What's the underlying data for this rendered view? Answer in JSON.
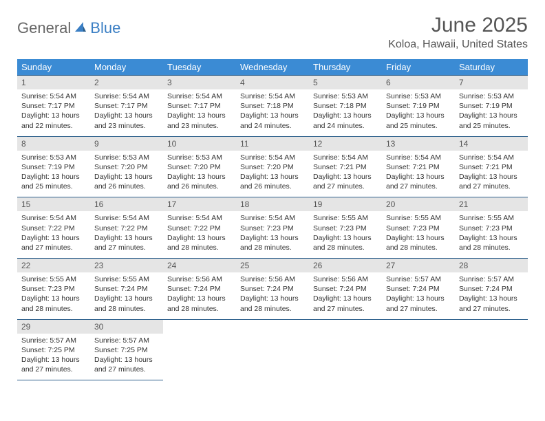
{
  "logo": {
    "general": "General",
    "blue": "Blue"
  },
  "title": "June 2025",
  "location": "Koloa, Hawaii, United States",
  "colors": {
    "header_bg": "#3b8bd4",
    "header_text": "#ffffff",
    "daynum_bg": "#e5e5e5",
    "rule": "#2a5d8a",
    "title_text": "#555555",
    "body_text": "#333333",
    "logo_blue": "#3b7fc4"
  },
  "day_labels": [
    "Sunday",
    "Monday",
    "Tuesday",
    "Wednesday",
    "Thursday",
    "Friday",
    "Saturday"
  ],
  "weeks": [
    [
      {
        "n": "1",
        "sr": "5:54 AM",
        "ss": "7:17 PM",
        "dl": "13 hours and 22 minutes."
      },
      {
        "n": "2",
        "sr": "5:54 AM",
        "ss": "7:17 PM",
        "dl": "13 hours and 23 minutes."
      },
      {
        "n": "3",
        "sr": "5:54 AM",
        "ss": "7:17 PM",
        "dl": "13 hours and 23 minutes."
      },
      {
        "n": "4",
        "sr": "5:54 AM",
        "ss": "7:18 PM",
        "dl": "13 hours and 24 minutes."
      },
      {
        "n": "5",
        "sr": "5:53 AM",
        "ss": "7:18 PM",
        "dl": "13 hours and 24 minutes."
      },
      {
        "n": "6",
        "sr": "5:53 AM",
        "ss": "7:19 PM",
        "dl": "13 hours and 25 minutes."
      },
      {
        "n": "7",
        "sr": "5:53 AM",
        "ss": "7:19 PM",
        "dl": "13 hours and 25 minutes."
      }
    ],
    [
      {
        "n": "8",
        "sr": "5:53 AM",
        "ss": "7:19 PM",
        "dl": "13 hours and 25 minutes."
      },
      {
        "n": "9",
        "sr": "5:53 AM",
        "ss": "7:20 PM",
        "dl": "13 hours and 26 minutes."
      },
      {
        "n": "10",
        "sr": "5:53 AM",
        "ss": "7:20 PM",
        "dl": "13 hours and 26 minutes."
      },
      {
        "n": "11",
        "sr": "5:54 AM",
        "ss": "7:20 PM",
        "dl": "13 hours and 26 minutes."
      },
      {
        "n": "12",
        "sr": "5:54 AM",
        "ss": "7:21 PM",
        "dl": "13 hours and 27 minutes."
      },
      {
        "n": "13",
        "sr": "5:54 AM",
        "ss": "7:21 PM",
        "dl": "13 hours and 27 minutes."
      },
      {
        "n": "14",
        "sr": "5:54 AM",
        "ss": "7:21 PM",
        "dl": "13 hours and 27 minutes."
      }
    ],
    [
      {
        "n": "15",
        "sr": "5:54 AM",
        "ss": "7:22 PM",
        "dl": "13 hours and 27 minutes."
      },
      {
        "n": "16",
        "sr": "5:54 AM",
        "ss": "7:22 PM",
        "dl": "13 hours and 27 minutes."
      },
      {
        "n": "17",
        "sr": "5:54 AM",
        "ss": "7:22 PM",
        "dl": "13 hours and 28 minutes."
      },
      {
        "n": "18",
        "sr": "5:54 AM",
        "ss": "7:23 PM",
        "dl": "13 hours and 28 minutes."
      },
      {
        "n": "19",
        "sr": "5:55 AM",
        "ss": "7:23 PM",
        "dl": "13 hours and 28 minutes."
      },
      {
        "n": "20",
        "sr": "5:55 AM",
        "ss": "7:23 PM",
        "dl": "13 hours and 28 minutes."
      },
      {
        "n": "21",
        "sr": "5:55 AM",
        "ss": "7:23 PM",
        "dl": "13 hours and 28 minutes."
      }
    ],
    [
      {
        "n": "22",
        "sr": "5:55 AM",
        "ss": "7:23 PM",
        "dl": "13 hours and 28 minutes."
      },
      {
        "n": "23",
        "sr": "5:55 AM",
        "ss": "7:24 PM",
        "dl": "13 hours and 28 minutes."
      },
      {
        "n": "24",
        "sr": "5:56 AM",
        "ss": "7:24 PM",
        "dl": "13 hours and 28 minutes."
      },
      {
        "n": "25",
        "sr": "5:56 AM",
        "ss": "7:24 PM",
        "dl": "13 hours and 28 minutes."
      },
      {
        "n": "26",
        "sr": "5:56 AM",
        "ss": "7:24 PM",
        "dl": "13 hours and 27 minutes."
      },
      {
        "n": "27",
        "sr": "5:57 AM",
        "ss": "7:24 PM",
        "dl": "13 hours and 27 minutes."
      },
      {
        "n": "28",
        "sr": "5:57 AM",
        "ss": "7:24 PM",
        "dl": "13 hours and 27 minutes."
      }
    ],
    [
      {
        "n": "29",
        "sr": "5:57 AM",
        "ss": "7:25 PM",
        "dl": "13 hours and 27 minutes."
      },
      {
        "n": "30",
        "sr": "5:57 AM",
        "ss": "7:25 PM",
        "dl": "13 hours and 27 minutes."
      },
      null,
      null,
      null,
      null,
      null
    ]
  ],
  "labels": {
    "sunrise": "Sunrise:",
    "sunset": "Sunset:",
    "daylight": "Daylight:"
  }
}
